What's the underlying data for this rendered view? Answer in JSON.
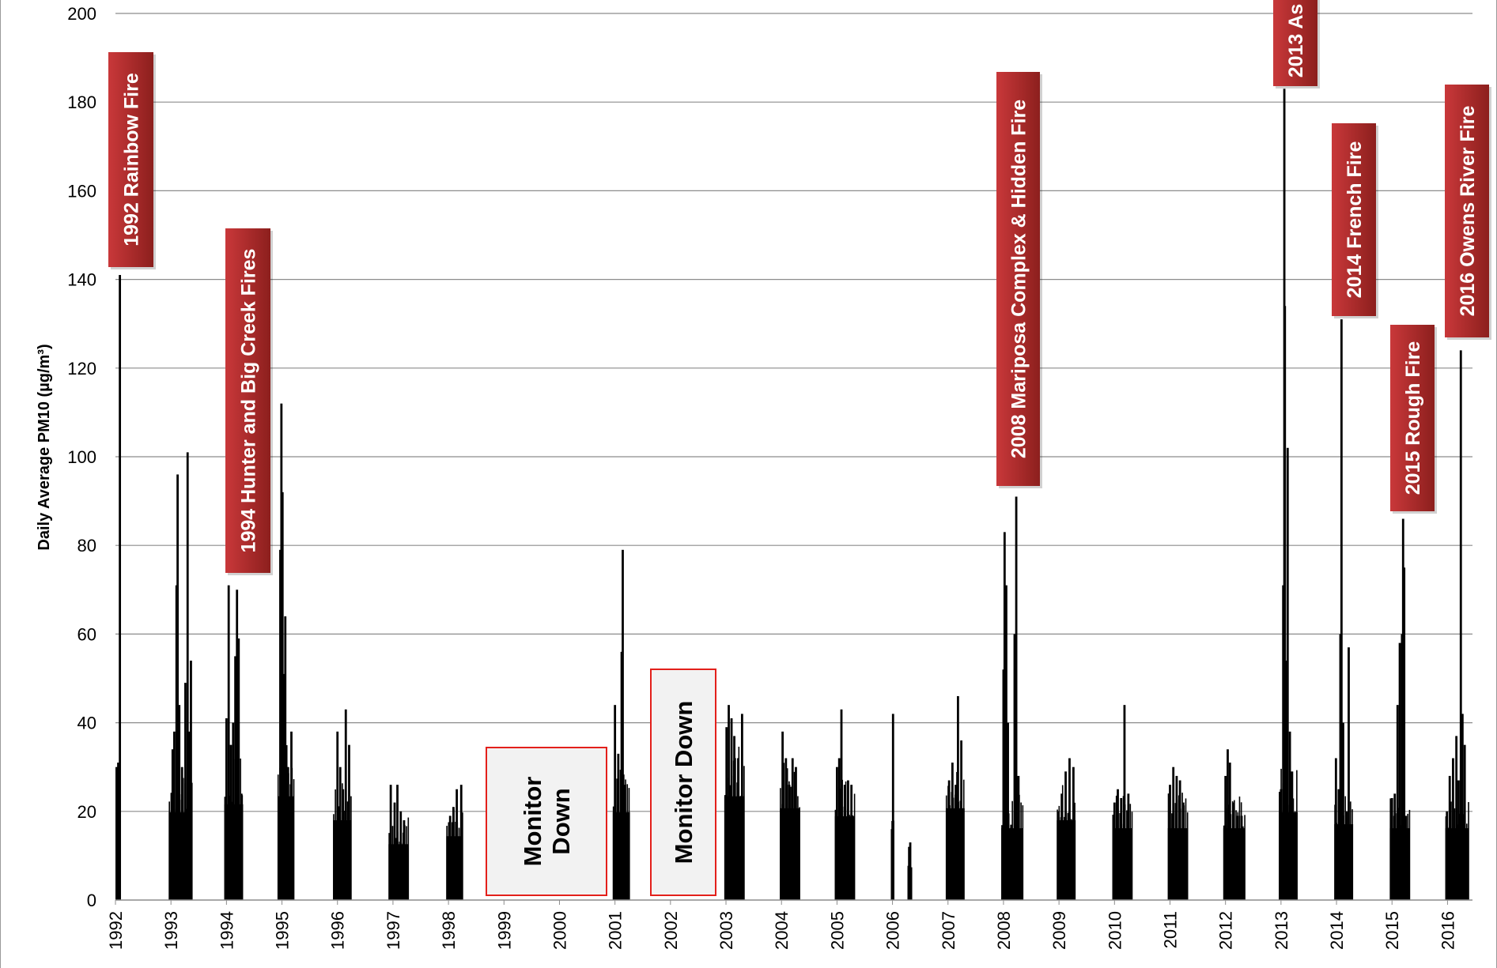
{
  "chart_data": {
    "type": "bar",
    "ylabel": "Daily Average PM10 (µg/m³)",
    "xlabel": "",
    "ylim": [
      0,
      200
    ],
    "yticks": [
      0,
      20,
      40,
      60,
      80,
      100,
      120,
      140,
      160,
      180,
      200
    ],
    "xlim": [
      1992,
      2016.45
    ],
    "x_tick_labels": [
      "1992",
      "1993",
      "1994",
      "1995",
      "1996",
      "1997",
      "1998",
      "1999",
      "2000",
      "2001",
      "2002",
      "2003",
      "2004",
      "2005",
      "2006",
      "2007",
      "2008",
      "2009",
      "2010",
      "2011",
      "2012",
      "2013",
      "2014",
      "2015",
      "2016"
    ],
    "grid": "horizontal",
    "bar_color": "#000000",
    "seasons": [
      {
        "start": 1992.0,
        "end": 1992.07,
        "base": 18,
        "peaks": [
          [
            1992.02,
            30
          ],
          [
            1992.05,
            31
          ],
          [
            1992.08,
            141
          ]
        ]
      },
      {
        "start": 1992.96,
        "end": 1993.38,
        "base": 22,
        "peaks": [
          [
            1993.03,
            34
          ],
          [
            1993.06,
            38
          ],
          [
            1993.1,
            71
          ],
          [
            1993.12,
            96
          ],
          [
            1993.15,
            44
          ],
          [
            1993.2,
            30
          ],
          [
            1993.26,
            49
          ],
          [
            1993.3,
            101
          ],
          [
            1993.33,
            38
          ],
          [
            1993.36,
            54
          ]
        ]
      },
      {
        "start": 1993.96,
        "end": 1994.3,
        "base": 24,
        "peaks": [
          [
            1994.0,
            41
          ],
          [
            1994.04,
            71
          ],
          [
            1994.08,
            35
          ],
          [
            1994.12,
            40
          ],
          [
            1994.16,
            55
          ],
          [
            1994.19,
            70
          ],
          [
            1994.22,
            59
          ],
          [
            1994.27,
            24
          ]
        ]
      },
      {
        "start": 1994.92,
        "end": 1995.22,
        "base": 26,
        "peaks": [
          [
            1994.97,
            79
          ],
          [
            1994.99,
            112
          ],
          [
            1995.01,
            92
          ],
          [
            1995.04,
            51
          ],
          [
            1995.06,
            64
          ],
          [
            1995.11,
            30
          ],
          [
            1995.17,
            38
          ]
        ]
      },
      {
        "start": 1995.92,
        "end": 1996.25,
        "base": 20,
        "peaks": [
          [
            1996.0,
            38
          ],
          [
            1996.05,
            30
          ],
          [
            1996.1,
            25
          ],
          [
            1996.15,
            43
          ],
          [
            1996.21,
            35
          ]
        ]
      },
      {
        "start": 1996.92,
        "end": 1997.27,
        "base": 14,
        "peaks": [
          [
            1996.96,
            26
          ],
          [
            1997.03,
            22
          ],
          [
            1997.08,
            26
          ],
          [
            1997.14,
            20
          ],
          [
            1997.2,
            18
          ]
        ]
      },
      {
        "start": 1997.96,
        "end": 1998.26,
        "base": 16,
        "peaks": [
          [
            1998.03,
            19
          ],
          [
            1998.09,
            21
          ],
          [
            1998.15,
            25
          ],
          [
            1998.23,
            26
          ]
        ]
      },
      {
        "start": 2000.96,
        "end": 2001.27,
        "base": 22,
        "peaks": [
          [
            2001.0,
            44
          ],
          [
            2001.06,
            33
          ],
          [
            2001.12,
            56
          ],
          [
            2001.14,
            79
          ],
          [
            2001.18,
            26
          ]
        ]
      },
      {
        "start": 2002.97,
        "end": 2003.32,
        "base": 26,
        "peaks": [
          [
            2003.01,
            39
          ],
          [
            2003.05,
            44
          ],
          [
            2003.1,
            41
          ],
          [
            2003.15,
            37
          ],
          [
            2003.22,
            32
          ],
          [
            2003.29,
            42
          ]
        ]
      },
      {
        "start": 2003.97,
        "end": 2004.32,
        "base": 23,
        "peaks": [
          [
            2004.02,
            38
          ],
          [
            2004.08,
            32
          ],
          [
            2004.14,
            26
          ],
          [
            2004.2,
            32
          ],
          [
            2004.26,
            30
          ]
        ]
      },
      {
        "start": 2004.96,
        "end": 2005.32,
        "base": 21,
        "peaks": [
          [
            2005.0,
            30
          ],
          [
            2005.04,
            32
          ],
          [
            2005.08,
            43
          ],
          [
            2005.14,
            26
          ],
          [
            2005.2,
            27
          ],
          [
            2005.26,
            26
          ]
        ]
      },
      {
        "start": 2005.98,
        "end": 2006.02,
        "base": 14,
        "peaks": [
          [
            2005.99,
            16
          ],
          [
            2006.01,
            42
          ]
        ]
      },
      {
        "start": 2006.27,
        "end": 2006.34,
        "base": 8,
        "peaks": [
          [
            2006.3,
            12
          ],
          [
            2006.32,
            13
          ]
        ]
      },
      {
        "start": 2006.96,
        "end": 2007.3,
        "base": 23,
        "peaks": [
          [
            2007.02,
            27
          ],
          [
            2007.08,
            31
          ],
          [
            2007.14,
            26
          ],
          [
            2007.18,
            46
          ],
          [
            2007.24,
            36
          ]
        ]
      },
      {
        "start": 2007.96,
        "end": 2008.34,
        "base": 18,
        "peaks": [
          [
            2008.0,
            52
          ],
          [
            2008.02,
            83
          ],
          [
            2008.05,
            71
          ],
          [
            2008.08,
            40
          ],
          [
            2008.14,
            17
          ],
          [
            2008.2,
            60
          ],
          [
            2008.23,
            91
          ],
          [
            2008.27,
            28
          ]
        ]
      },
      {
        "start": 2008.96,
        "end": 2009.3,
        "base": 20,
        "peaks": [
          [
            2008.99,
            20
          ],
          [
            2009.05,
            24
          ],
          [
            2009.12,
            29
          ],
          [
            2009.19,
            32
          ],
          [
            2009.26,
            30
          ]
        ]
      },
      {
        "start": 2009.96,
        "end": 2010.32,
        "base": 18,
        "peaks": [
          [
            2010.0,
            22
          ],
          [
            2010.06,
            25
          ],
          [
            2010.12,
            23
          ],
          [
            2010.18,
            44
          ],
          [
            2010.25,
            24
          ]
        ]
      },
      {
        "start": 2010.96,
        "end": 2011.32,
        "base": 18,
        "peaks": [
          [
            2011.0,
            26
          ],
          [
            2011.06,
            30
          ],
          [
            2011.12,
            28
          ],
          [
            2011.18,
            27
          ],
          [
            2011.24,
            22
          ]
        ]
      },
      {
        "start": 2011.96,
        "end": 2012.34,
        "base": 18,
        "peaks": [
          [
            2012.0,
            28
          ],
          [
            2012.04,
            34
          ],
          [
            2012.08,
            31
          ],
          [
            2012.14,
            22
          ],
          [
            2012.22,
            19
          ],
          [
            2012.29,
            19
          ]
        ]
      },
      {
        "start": 2012.96,
        "end": 2013.3,
        "base": 22,
        "peaks": [
          [
            2013.0,
            25
          ],
          [
            2013.04,
            71
          ],
          [
            2013.06,
            183
          ],
          [
            2013.07,
            134
          ],
          [
            2013.1,
            54
          ],
          [
            2013.12,
            102
          ],
          [
            2013.16,
            38
          ],
          [
            2013.2,
            29
          ]
        ]
      },
      {
        "start": 2013.96,
        "end": 2014.3,
        "base": 19,
        "peaks": [
          [
            2013.99,
            32
          ],
          [
            2014.04,
            25
          ],
          [
            2014.07,
            60
          ],
          [
            2014.09,
            131
          ],
          [
            2014.12,
            40
          ],
          [
            2014.18,
            20
          ],
          [
            2014.22,
            57
          ]
        ]
      },
      {
        "start": 2014.96,
        "end": 2015.32,
        "base": 18,
        "peaks": [
          [
            2015.0,
            23
          ],
          [
            2015.05,
            24
          ],
          [
            2015.1,
            44
          ],
          [
            2015.14,
            58
          ],
          [
            2015.18,
            60
          ],
          [
            2015.2,
            86
          ],
          [
            2015.22,
            75
          ],
          [
            2015.25,
            19
          ]
        ]
      },
      {
        "start": 2015.96,
        "end": 2016.38,
        "base": 18,
        "peaks": [
          [
            2015.99,
            20
          ],
          [
            2016.04,
            28
          ],
          [
            2016.1,
            32
          ],
          [
            2016.16,
            37
          ],
          [
            2016.2,
            27
          ],
          [
            2016.24,
            124
          ],
          [
            2016.27,
            42
          ],
          [
            2016.31,
            35
          ]
        ]
      }
    ],
    "annotations": [
      {
        "text": "1992 Rainbow Fire",
        "kind": "fire"
      },
      {
        "text": "1994 Hunter and Big Creek Fires",
        "kind": "fire"
      },
      {
        "text": "2008 Mariposa Complex & Hidden Fire",
        "kind": "fire"
      },
      {
        "text": "2013 As",
        "kind": "fire"
      },
      {
        "text": "2014 French Fire",
        "kind": "fire"
      },
      {
        "text": "2015 Rough Fire",
        "kind": "fire"
      },
      {
        "text": "2016 Owens River Fire",
        "kind": "fire"
      },
      {
        "text": "Monitor\nDown",
        "kind": "monitor"
      },
      {
        "text": "Monitor Down",
        "kind": "monitor"
      }
    ],
    "colors": {
      "fire_box_top": "#c9383a",
      "fire_box_bottom": "#8c1f1d",
      "monitor_box_fill": "#f2f2f2",
      "monitor_box_border": "#e3201b",
      "grid": "#8c8c8c"
    }
  }
}
